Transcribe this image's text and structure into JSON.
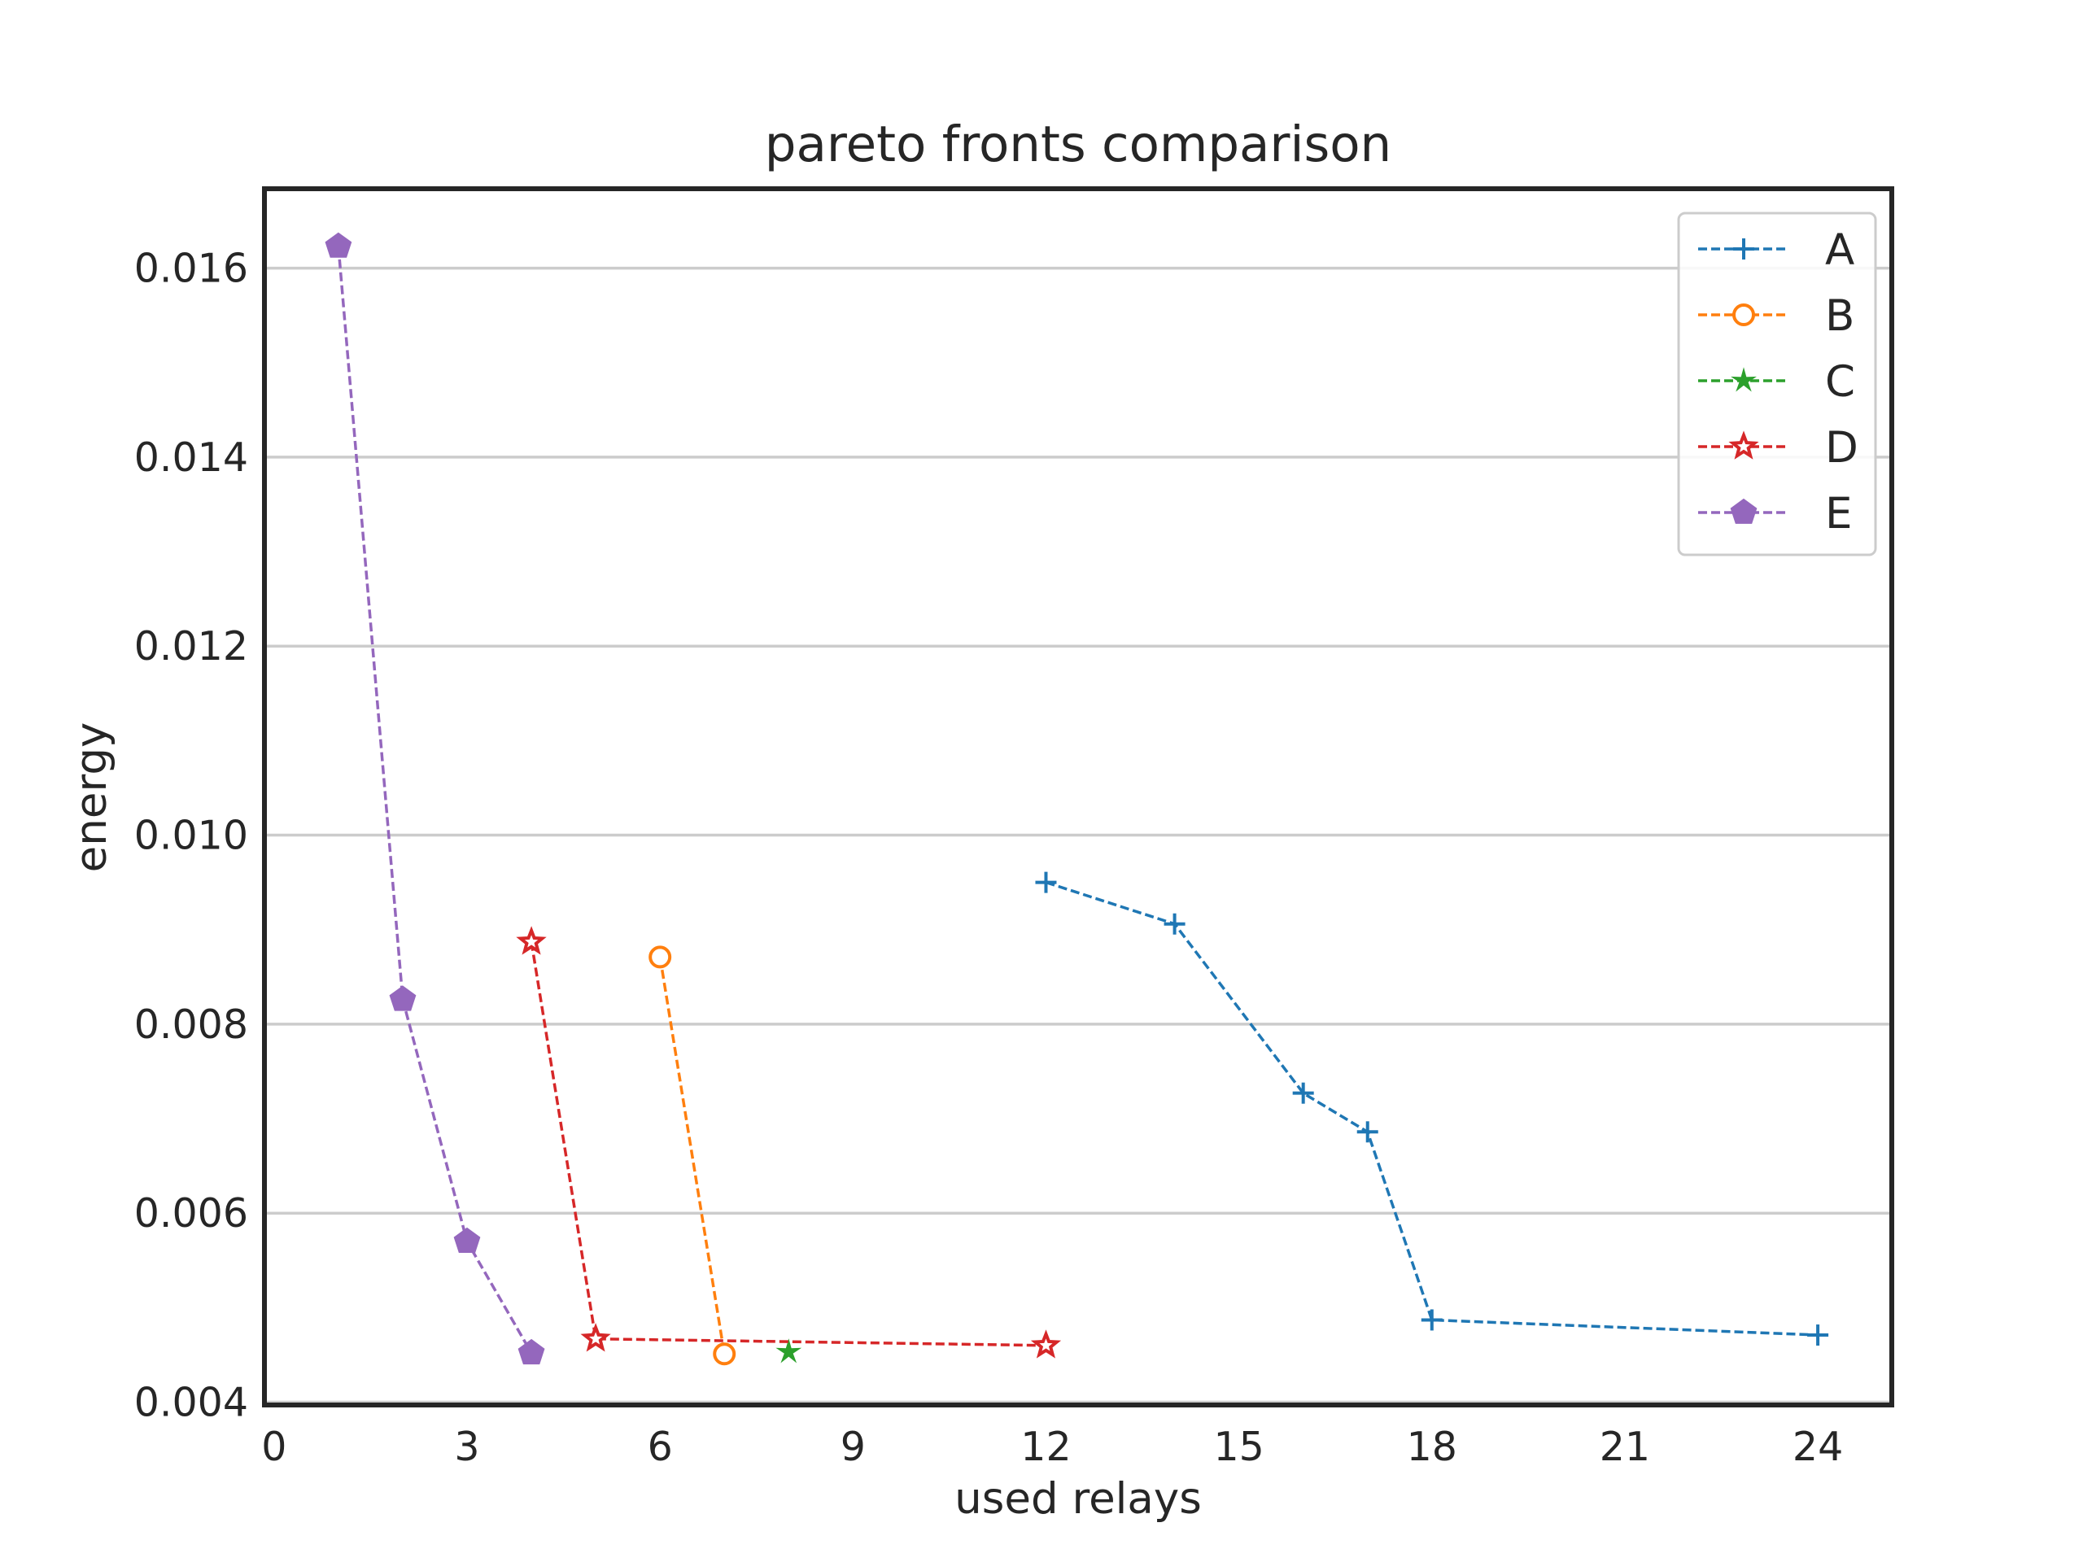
{
  "chart_data": {
    "type": "line",
    "title": "pareto fronts comparison",
    "xlabel": "used relays",
    "ylabel": "energy",
    "xlim": [
      -0.15,
      25.15
    ],
    "ylim": [
      0.00397,
      0.01684
    ],
    "xticks": [
      0,
      3,
      6,
      9,
      12,
      15,
      18,
      21,
      24
    ],
    "yticks": [
      0.004,
      0.006,
      0.008,
      0.01,
      0.012,
      0.014,
      0.016
    ],
    "xtick_labels": [
      "0",
      "3",
      "6",
      "9",
      "12",
      "15",
      "18",
      "21",
      "24"
    ],
    "ytick_labels": [
      "0.004",
      "0.006",
      "0.008",
      "0.010",
      "0.012",
      "0.014",
      "0.016"
    ],
    "grid": "horizontal",
    "legend_position": "top-right",
    "series": [
      {
        "name": "A",
        "color": "#1f77b4",
        "marker": "plus",
        "linestyle": "dashed",
        "x": [
          12,
          14,
          16,
          17,
          18,
          24
        ],
        "y": [
          0.0095,
          0.00906,
          0.00727,
          0.00686,
          0.00487,
          0.00471
        ]
      },
      {
        "name": "B",
        "color": "#ff7f0e",
        "marker": "circle-open",
        "linestyle": "dashed",
        "x": [
          6,
          7
        ],
        "y": [
          0.00871,
          0.00451
        ]
      },
      {
        "name": "C",
        "color": "#2ca02c",
        "marker": "star-filled",
        "linestyle": "dashed",
        "x": [
          8
        ],
        "y": [
          0.00453
        ]
      },
      {
        "name": "D",
        "color": "#d62728",
        "marker": "star-open",
        "linestyle": "dashed",
        "x": [
          4,
          5,
          12
        ],
        "y": [
          0.00887,
          0.00467,
          0.0046
        ]
      },
      {
        "name": "E",
        "color": "#9467bd",
        "marker": "pentagon-filled",
        "linestyle": "dashed",
        "x": [
          1,
          2,
          3,
          4
        ],
        "y": [
          0.01623,
          0.00826,
          0.0057,
          0.00452
        ]
      }
    ]
  }
}
